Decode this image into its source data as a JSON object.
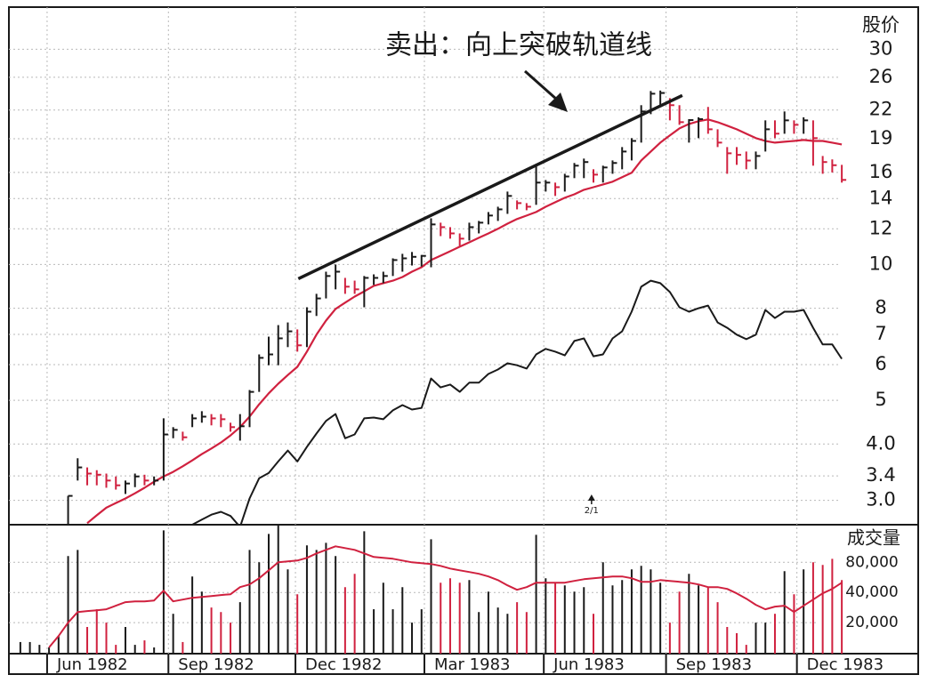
{
  "chart_data": {
    "type": "ohlc",
    "title": "卖出：向上突破轨道线",
    "y_label": "股价",
    "volume_label": "成交量",
    "log_scale": true,
    "grid": true,
    "up_color": "#1a1a1a",
    "down_color": "#d0213f",
    "ma_color": "#d0213f",
    "rs_color": "#1a1a1a",
    "categories": [
      null,
      null,
      null,
      null,
      null,
      null,
      null,
      null,
      null,
      null,
      null,
      null,
      null,
      null,
      null,
      null,
      null,
      null,
      null,
      null,
      null,
      null,
      null,
      null,
      null,
      null,
      null,
      null,
      null,
      null,
      null,
      null,
      null,
      null,
      null,
      null,
      null,
      null,
      null,
      null,
      null,
      null,
      null,
      null,
      null,
      null,
      null,
      null,
      null,
      null,
      null,
      null,
      null,
      null,
      null,
      null,
      null,
      null,
      null,
      null,
      null,
      null,
      null,
      null,
      null,
      null,
      null,
      null,
      null,
      null,
      null,
      null,
      null,
      null,
      null,
      null,
      null,
      null,
      null,
      null,
      null,
      null,
      null,
      null,
      null,
      null,
      null
    ],
    "xlim": [
      -1.2,
      94
    ],
    "xticks": [
      {
        "value": 2.8,
        "label": "Jun 1982"
      },
      {
        "value": 15.5,
        "label": "Sep 1982"
      },
      {
        "value": 28.8,
        "label": "Dec 1982"
      },
      {
        "value": 42.3,
        "label": "Mar 1983"
      },
      {
        "value": 54.8,
        "label": "Jun 1983"
      },
      {
        "value": 67.6,
        "label": "Sep 1983"
      },
      {
        "value": 81.3,
        "label": "Dec 1983"
      }
    ],
    "ylim": [
      2.65,
      37.2
    ],
    "yticks": [
      30,
      26,
      22,
      19,
      16,
      14,
      12,
      10,
      8,
      7,
      6,
      5,
      {
        "value": 4,
        "label": "4.0"
      },
      3.4,
      {
        "value": 3,
        "label": "3.0"
      }
    ],
    "vlim": [
      9800,
      190000
    ],
    "vticks": [
      {
        "value": 80000,
        "label": "80,000"
      },
      {
        "value": 40000,
        "label": "40,000"
      },
      {
        "value": 20000,
        "label": "20,000"
      }
    ],
    "high": [
      null,
      null,
      null,
      null,
      null,
      3.07,
      3.72,
      3.55,
      3.5,
      3.44,
      3.39,
      3.32,
      3.44,
      3.42,
      3.39,
      4.56,
      4.36,
      4.26,
      4.66,
      4.73,
      4.66,
      4.66,
      4.46,
      4.66,
      5.27,
      6.32,
      6.92,
      7.34,
      7.44,
      7.18,
      8.04,
      8.61,
      9.64,
      10,
      9.34,
      9.21,
      9.43,
      9.51,
      9.64,
      10.32,
      10.56,
      10.66,
      10.5,
      12.66,
      12.38,
      12.1,
      11.72,
      12.38,
      12.49,
      13.07,
      13.43,
      14.51,
      13.87,
      13.68,
      16.63,
      15.39,
      15.19,
      15.89,
      16.79,
      17.17,
      16.26,
      16.56,
      17.01,
      18.21,
      19.06,
      22.55,
      24.24,
      24.3,
      23.38,
      22.55,
      21.0,
      21.2,
      22.35,
      19.94,
      18.21,
      18.21,
      17.8,
      17.8,
      20.87,
      20.87,
      21.84,
      20.87,
      21.2,
      20.87,
      17.4,
      17.1,
      16.63
    ],
    "low": [
      null,
      null,
      null,
      null,
      null,
      2.64,
      3.32,
      3.24,
      3.24,
      3.2,
      3.17,
      3.1,
      3.21,
      3.24,
      3.24,
      3.32,
      4.12,
      4.07,
      4.36,
      4.46,
      4.4,
      4.36,
      4.26,
      4.07,
      4.36,
      5.22,
      5.98,
      5.98,
      6.56,
      6.41,
      6.56,
      7.69,
      8.41,
      8.81,
      8.61,
      8.61,
      8.04,
      9.01,
      9.09,
      9.43,
      9.64,
      9.95,
      9.9,
      9.86,
      11.56,
      11.41,
      11.0,
      11.3,
      11.72,
      12.27,
      12.49,
      12.95,
      13.25,
      13.19,
      13.56,
      14.51,
      14.19,
      14.51,
      15.54,
      15.54,
      15.19,
      15.19,
      15.89,
      16.26,
      17.01,
      18.63,
      21.54,
      22.35,
      20.87,
      20.4,
      18.63,
      19.06,
      19.49,
      18.21,
      15.89,
      16.63,
      16.26,
      16.26,
      17.8,
      19.06,
      19.49,
      19.49,
      19.49,
      16.56,
      15.89,
      16.0,
      15.19
    ],
    "close": [
      null,
      null,
      null,
      null,
      null,
      3.07,
      3.55,
      3.44,
      3.42,
      3.32,
      3.24,
      3.27,
      3.39,
      3.32,
      3.32,
      4.2,
      4.3,
      4.14,
      4.56,
      4.6,
      4.56,
      4.54,
      4.36,
      4.38,
      5.22,
      6.21,
      6.32,
      6.86,
      7.11,
      6.62,
      7.86,
      8.41,
      9.43,
      9.64,
      8.93,
      8.81,
      9.34,
      9.34,
      9.43,
      10.23,
      10.32,
      10.4,
      10.45,
      12.27,
      12.1,
      11.72,
      11.41,
      12.1,
      12.38,
      12.84,
      13.25,
      14.19,
      13.68,
      13.43,
      15.19,
      15.19,
      14.84,
      15.67,
      16.56,
      16.87,
      15.82,
      16.41,
      16.79,
      17.8,
      18.79,
      21.84,
      23.91,
      24.0,
      22.55,
      20.68,
      20.9,
      21.0,
      19.94,
      18.63,
      17.64,
      17.5,
      17.0,
      17.4,
      19.94,
      19.5,
      20.87,
      20.4,
      20.87,
      19.06,
      16.87,
      16.6,
      15.4
    ],
    "price_ma": [
      null,
      null,
      null,
      null,
      null,
      null,
      null,
      2.67,
      2.78,
      2.89,
      2.96,
      3.03,
      3.11,
      3.2,
      3.3,
      3.39,
      3.47,
      3.57,
      3.68,
      3.8,
      3.91,
      4.03,
      4.18,
      4.36,
      4.6,
      4.9,
      5.18,
      5.44,
      5.69,
      5.93,
      6.41,
      6.99,
      7.51,
      7.97,
      8.23,
      8.49,
      8.72,
      8.97,
      9.09,
      9.21,
      9.38,
      9.64,
      9.86,
      10.23,
      10.46,
      10.7,
      10.95,
      11.2,
      11.46,
      11.72,
      12.0,
      12.32,
      12.61,
      12.84,
      13.07,
      13.43,
      13.74,
      14.06,
      14.31,
      14.64,
      14.84,
      15.05,
      15.26,
      15.61,
      15.97,
      17.01,
      17.8,
      18.63,
      19.32,
      20.03,
      20.49,
      20.78,
      20.97,
      20.68,
      20.31,
      19.94,
      19.49,
      19.06,
      18.79,
      18.63,
      18.71,
      18.79,
      18.88,
      18.79,
      18.79,
      18.63,
      18.46
    ],
    "relative_strength": [
      null,
      null,
      null,
      null,
      null,
      null,
      null,
      null,
      null,
      null,
      null,
      null,
      null,
      null,
      null,
      null,
      null,
      null,
      2.65,
      2.72,
      2.79,
      2.83,
      2.77,
      2.62,
      3.03,
      3.36,
      3.45,
      3.66,
      3.87,
      3.66,
      3.94,
      4.22,
      4.5,
      4.66,
      4.12,
      4.2,
      4.56,
      4.58,
      4.54,
      4.75,
      4.88,
      4.77,
      4.81,
      5.59,
      5.34,
      5.42,
      5.22,
      5.47,
      5.47,
      5.72,
      5.85,
      6.04,
      5.98,
      5.88,
      6.32,
      6.5,
      6.41,
      6.29,
      6.77,
      6.86,
      6.26,
      6.32,
      6.86,
      7.11,
      7.86,
      8.93,
      9.21,
      9.09,
      8.69,
      8.04,
      7.86,
      8.0,
      8.11,
      7.44,
      7.24,
      6.99,
      6.83,
      6.99,
      7.93,
      7.61,
      7.86,
      7.86,
      7.93,
      7.24,
      6.65,
      6.65,
      6.18
    ],
    "volume": [
      12800,
      12800,
      12000,
      11300,
      14700,
      92300,
      106500,
      18100,
      27200,
      20000,
      12000,
      18100,
      12000,
      13300,
      11300,
      166800,
      24500,
      12800,
      57800,
      40800,
      28300,
      25500,
      20000,
      32000,
      106500,
      80000,
      153800,
      188600,
      68000,
      38400,
      118000,
      106500,
      125400,
      92300,
      45200,
      61400,
      163400,
      27200,
      50100,
      27200,
      45200,
      20000,
      27200,
      136000,
      50100,
      55500,
      50100,
      53200,
      25500,
      40800,
      28300,
      24500,
      32000,
      25500,
      150600,
      55500,
      50100,
      47100,
      40800,
      45200,
      24500,
      80000,
      47100,
      53200,
      68000,
      73800,
      68000,
      50100,
      20000,
      40800,
      61400,
      47100,
      45200,
      32000,
      18100,
      15700,
      12000,
      20000,
      20000,
      24500,
      65300,
      38400,
      68000,
      80000,
      75300,
      86800,
      53200
    ],
    "volume_ma": [
      null,
      null,
      null,
      11300,
      14700,
      20000,
      25500,
      26100,
      26600,
      27200,
      29500,
      32000,
      32600,
      32600,
      33300,
      41700,
      32600,
      34000,
      35400,
      36100,
      36900,
      37700,
      38400,
      45200,
      48100,
      55500,
      66600,
      80000,
      81700,
      83400,
      88600,
      98200,
      106500,
      115500,
      110900,
      106500,
      98200,
      90500,
      88600,
      86800,
      83400,
      80000,
      78400,
      76900,
      73800,
      69400,
      66600,
      64000,
      61400,
      57800,
      53200,
      47100,
      42500,
      45200,
      50100,
      50100,
      50100,
      50100,
      52200,
      54300,
      55500,
      56600,
      57800,
      57800,
      55500,
      51100,
      51100,
      53200,
      52200,
      51100,
      50100,
      48100,
      45200,
      45200,
      43400,
      39200,
      34700,
      30100,
      27200,
      28900,
      29500,
      25500,
      29500,
      34000,
      39200,
      43400,
      50100
    ],
    "trendline": {
      "x": [
        29.1,
        69.3
      ],
      "y": [
        9.3,
        23.7
      ]
    },
    "split": {
      "label": "2/1",
      "x": 59.8
    }
  }
}
